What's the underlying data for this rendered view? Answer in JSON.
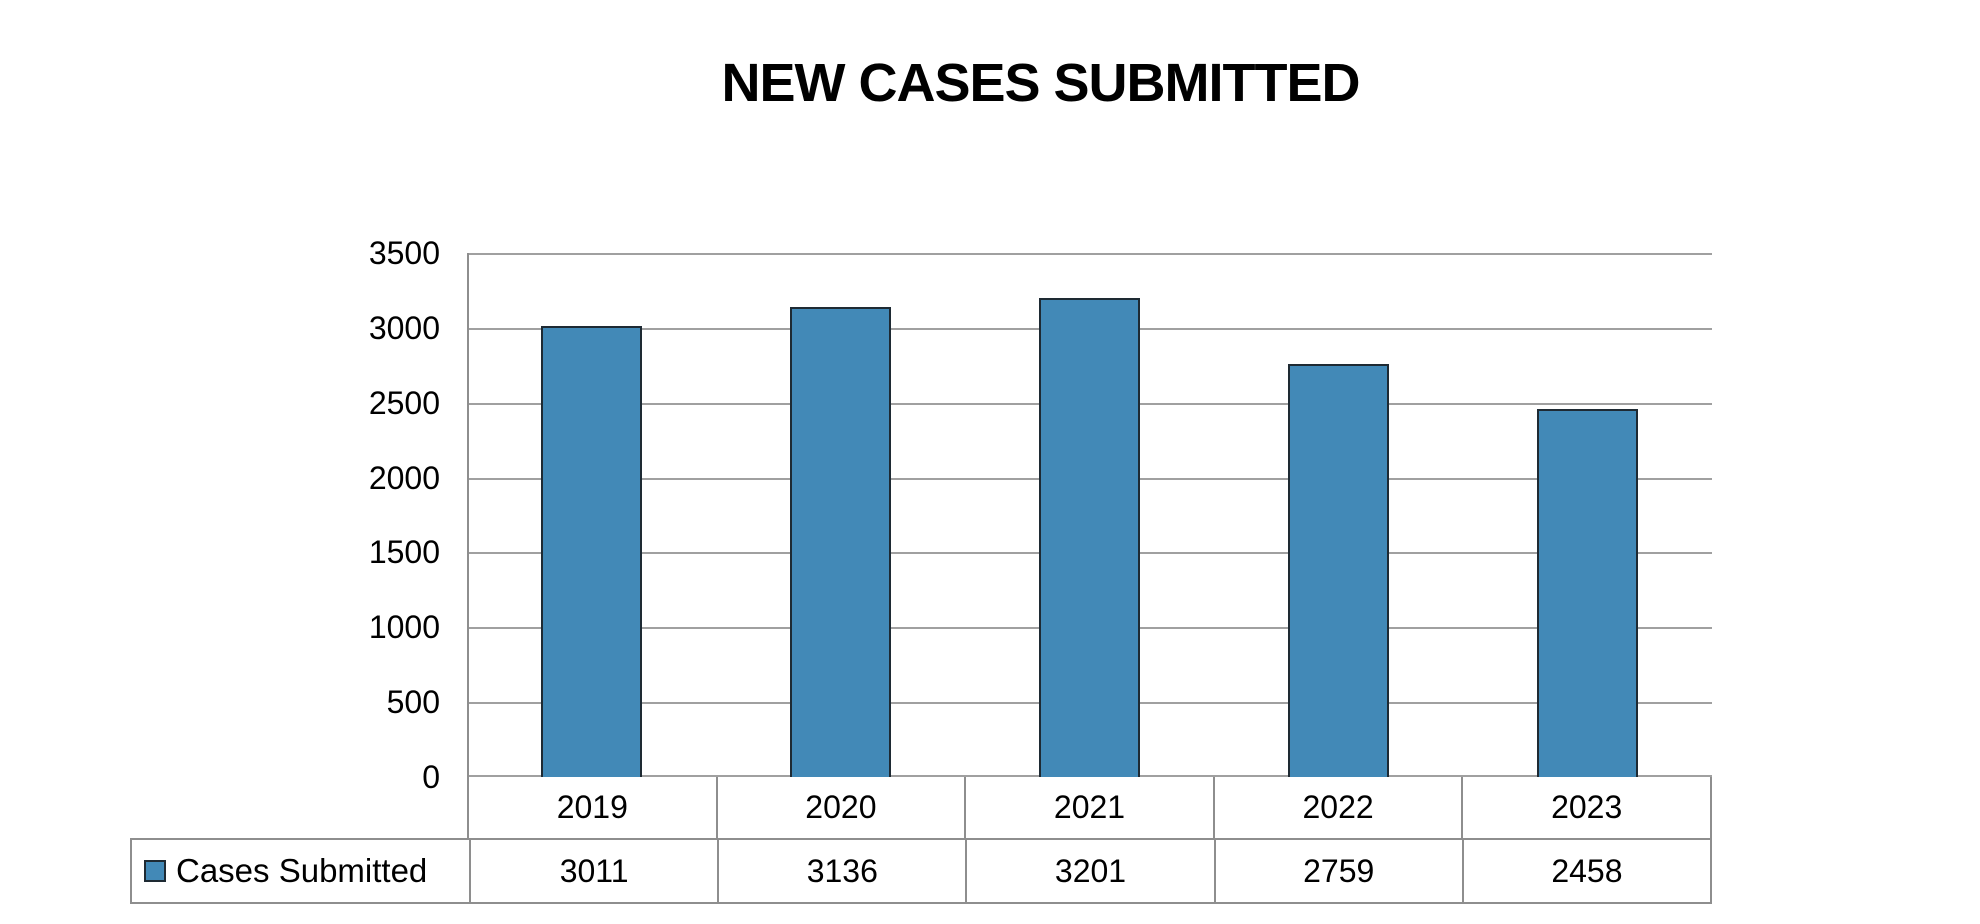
{
  "title": "NEW CASES SUBMITTED",
  "legend": {
    "label": "Cases Submitted"
  },
  "chart_data": {
    "type": "bar",
    "title": "NEW CASES SUBMITTED",
    "categories": [
      "2019",
      "2020",
      "2021",
      "2022",
      "2023"
    ],
    "series": [
      {
        "name": "Cases Submitted",
        "values": [
          3011,
          3136,
          3201,
          2759,
          2458
        ]
      }
    ],
    "xlabel": "",
    "ylabel": "",
    "ylim": [
      0,
      3500
    ],
    "yticks": [
      0,
      500,
      1000,
      1500,
      2000,
      2500,
      3000,
      3500
    ],
    "grid": "horizontal",
    "legend_position": "bottom-left-table",
    "data_table_shown": true,
    "colors": {
      "bar_fill": "#4289b7",
      "bar_border": "#1e2a33",
      "gridline": "#a0a0a0",
      "table_border": "#8e8e8e",
      "text": "#000000",
      "background": "#ffffff"
    }
  }
}
